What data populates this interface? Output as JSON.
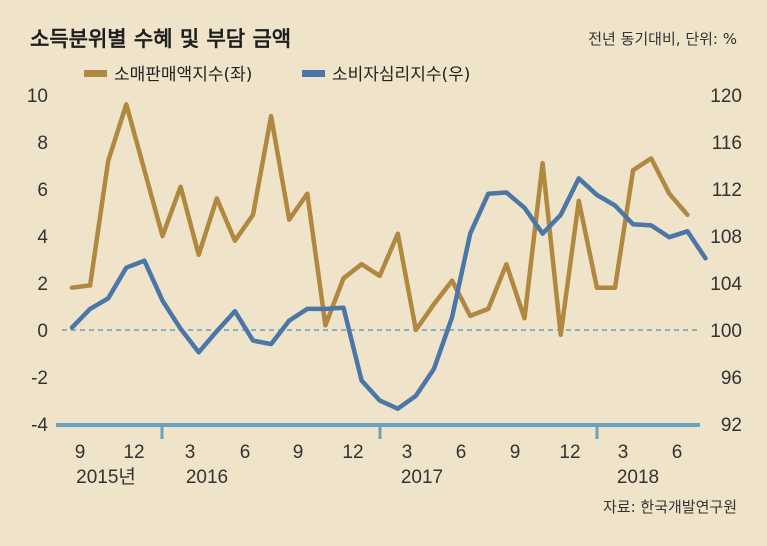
{
  "title": "소득분위별 수혜 및 부담 금액",
  "unit_note": "전년 동기대비, 단위: %",
  "source": "자료: 한국개발연구원",
  "colors": {
    "retail": "#b08840",
    "consumer": "#4a76a8",
    "background": "#efe3c9",
    "zero_line": "#6aa0c0"
  },
  "chart_data": {
    "type": "line",
    "legend_position": "top-left",
    "grid": false,
    "x_tick_labels": [
      "9",
      "12",
      "3",
      "6",
      "9",
      "12",
      "3",
      "6",
      "9",
      "12",
      "3",
      "6"
    ],
    "year_labels": [
      "2015년",
      "2016",
      "2017",
      "2018"
    ],
    "y_left": {
      "lim": [
        -4,
        10
      ],
      "ticks": [
        "-4",
        "-2",
        "0",
        "2",
        "4",
        "6",
        "8",
        "10"
      ]
    },
    "y_right": {
      "lim": [
        92,
        120
      ],
      "ticks": [
        "92",
        "96",
        "100",
        "104",
        "108",
        "112",
        "116",
        "120"
      ]
    },
    "series": [
      {
        "name": "소매판매액지수(좌)",
        "axis": "left",
        "values": [
          1.8,
          1.9,
          7.2,
          9.6,
          6.8,
          4.0,
          6.1,
          3.2,
          5.6,
          3.8,
          4.9,
          9.1,
          4.7,
          5.8,
          0.2,
          2.2,
          2.8,
          2.3,
          4.1,
          0.0,
          1.1,
          2.1,
          0.6,
          0.9,
          2.8,
          0.5,
          7.1,
          -0.2,
          5.5,
          1.8,
          1.8,
          6.8,
          7.3,
          5.8,
          4.9
        ]
      },
      {
        "name": "소비자심리지수(우)",
        "axis": "right",
        "values": [
          100.2,
          101.8,
          102.7,
          105.3,
          105.9,
          102.5,
          100.1,
          98.1,
          99.9,
          101.6,
          99.1,
          98.8,
          100.8,
          101.8,
          101.8,
          101.9,
          95.7,
          94.0,
          93.3,
          94.4,
          96.7,
          101.1,
          108.2,
          111.6,
          111.7,
          110.4,
          108.2,
          109.8,
          112.9,
          111.5,
          110.6,
          109.0,
          108.9,
          107.9,
          108.4,
          106.1
        ]
      }
    ]
  }
}
